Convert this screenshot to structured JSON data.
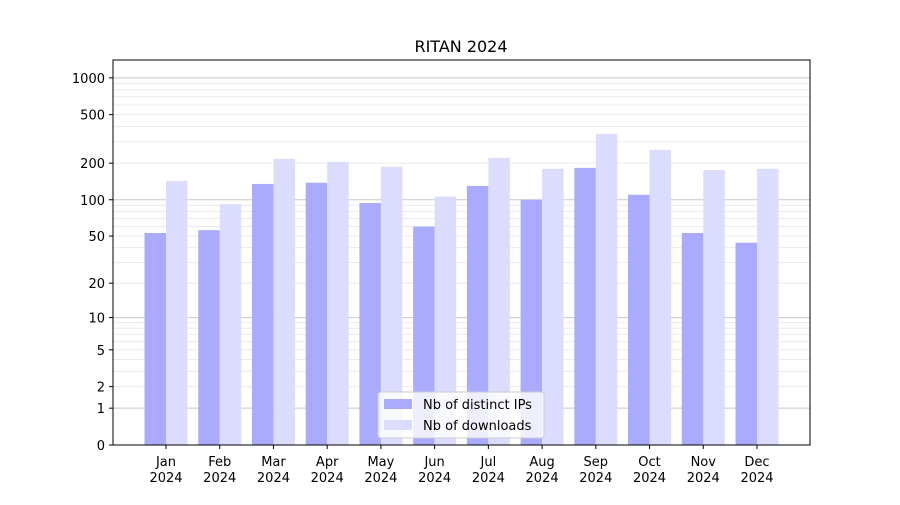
{
  "chart_data": {
    "type": "bar",
    "title": "RITAN 2024",
    "xlabel": "",
    "ylabel": "",
    "yscale": "log(1+y)",
    "ylim": [
      0,
      1400
    ],
    "yticks": [
      0,
      1,
      2,
      5,
      10,
      20,
      50,
      100,
      200,
      500,
      1000
    ],
    "grid": true,
    "legend_position": "lower center",
    "categories": [
      "Jan\n2024",
      "Feb\n2024",
      "Mar\n2024",
      "Apr\n2024",
      "May\n2024",
      "Jun\n2024",
      "Jul\n2024",
      "Aug\n2024",
      "Sep\n2024",
      "Oct\n2024",
      "Nov\n2024",
      "Dec\n2024"
    ],
    "series": [
      {
        "name": "Nb of distinct IPs",
        "color": "#aaaaff",
        "values": [
          53,
          56,
          135,
          138,
          94,
          60,
          130,
          100,
          183,
          110,
          53,
          44
        ]
      },
      {
        "name": "Nb of downloads",
        "color": "#dcdcff",
        "values": [
          143,
          92,
          217,
          205,
          187,
          106,
          221,
          180,
          348,
          257,
          176,
          180
        ]
      }
    ]
  }
}
